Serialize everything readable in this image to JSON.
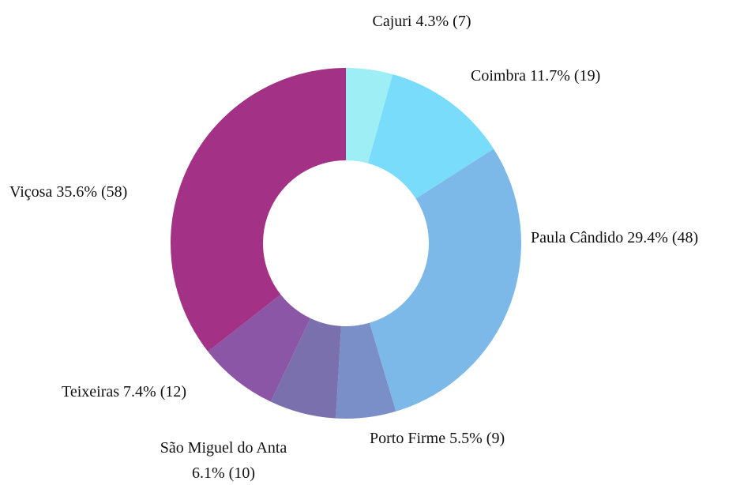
{
  "chart_data": {
    "type": "donut",
    "categories": [
      "Cajuri",
      "Coimbra",
      "Paula Cândido",
      "Porto Firme",
      "São Miguel do Anta",
      "Teixeiras",
      "Viçosa"
    ],
    "values": [
      7,
      19,
      48,
      9,
      10,
      12,
      58
    ],
    "value_labels": [
      "(7)",
      "(19)",
      "(48)",
      "(9)",
      "(10)",
      "(12)",
      "(58)"
    ],
    "percent_labels": [
      "4.3%",
      "11.7%",
      "29.4%",
      "5.5%",
      "6.1%",
      "7.4%",
      "35.6%"
    ],
    "colors": [
      "#9eeef5",
      "#7adcfb",
      "#7db9e8",
      "#7a8ec8",
      "#7a70ae",
      "#8c56a6",
      "#a33185"
    ]
  }
}
